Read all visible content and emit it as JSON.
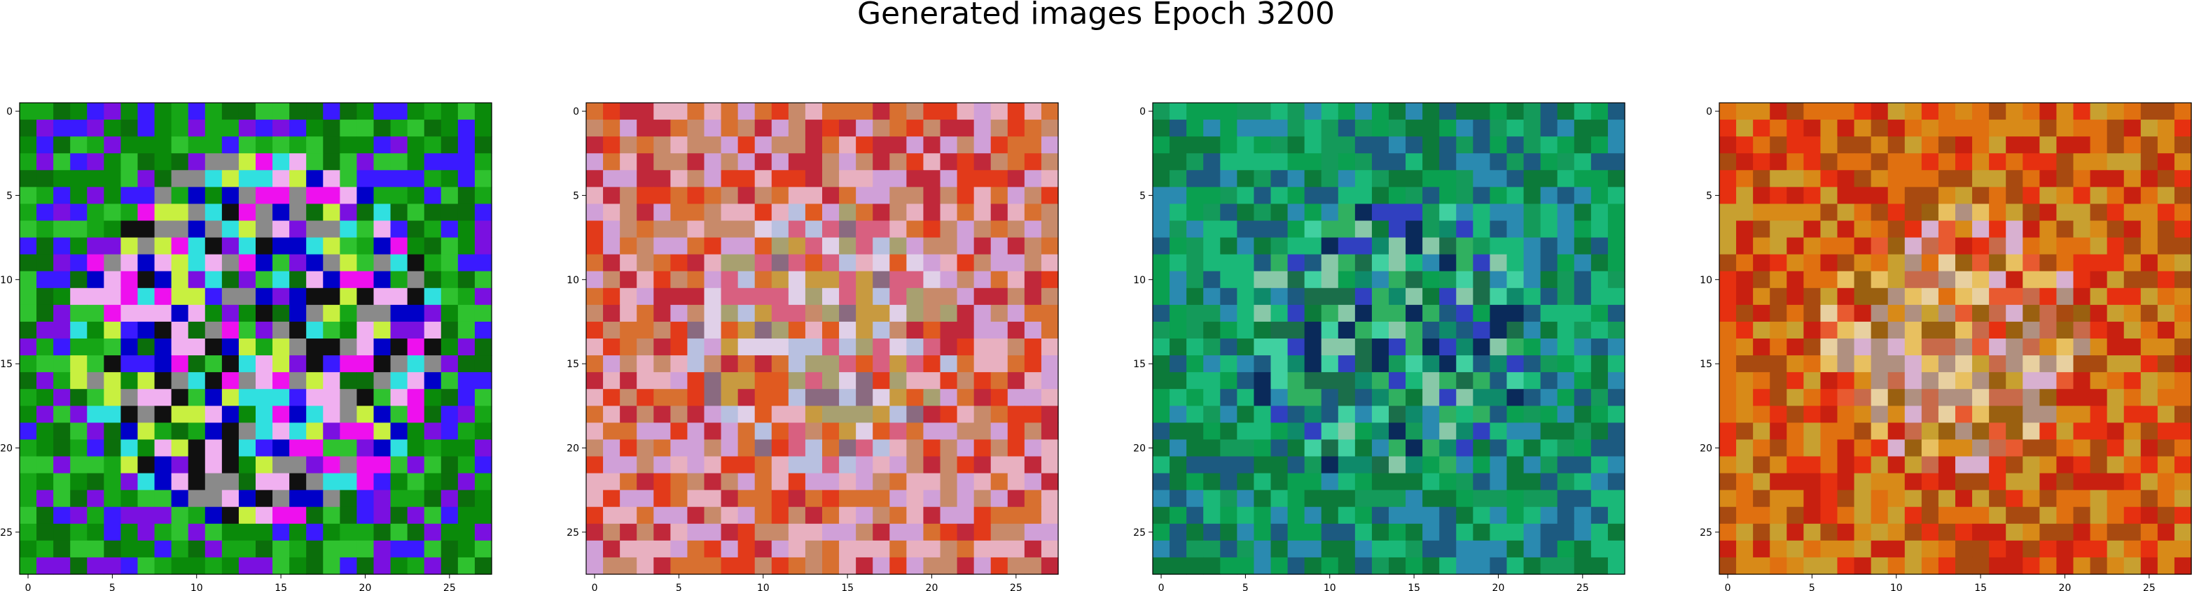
{
  "figure": {
    "title": "Generated images Epoch 3200"
  },
  "chart_data": [
    {
      "type": "heatmap",
      "description": "image grid 28x28 RGB",
      "grid_size": [
        28,
        28
      ],
      "x_ticks": [
        0,
        5,
        10,
        15,
        20,
        25
      ],
      "y_ticks": [
        0,
        5,
        10,
        15,
        20,
        25
      ],
      "xlim": [
        -0.5,
        27.5
      ],
      "ylim": [
        27.5,
        -0.5
      ],
      "palette": [
        "#0a8a0a",
        "#16a616",
        "#0b6e0b",
        "#2fc22f",
        "#3a1aff",
        "#7a10e0",
        "#ee10ee",
        "#0000c8",
        "#30e0e0",
        "#f0b0f0",
        "#c8f040",
        "#101010",
        "#8a8a8a"
      ],
      "seed": 11,
      "center_bias": 0.78
    },
    {
      "type": "heatmap",
      "grid_size": [
        28,
        28
      ],
      "x_ticks": [
        0,
        5,
        10,
        15,
        20,
        25
      ],
      "y_ticks": [
        0,
        5,
        10,
        15,
        20,
        25
      ],
      "xlim": [
        -0.5,
        27.5
      ],
      "ylim": [
        27.5,
        -0.5
      ],
      "palette": [
        "#c88a6a",
        "#d87030",
        "#e23a1a",
        "#c0283a",
        "#e8b0c0",
        "#d0a0d8",
        "#b8c0e0",
        "#e0d0e8",
        "#8a6a80",
        "#c89a40",
        "#d86080",
        "#a8a070",
        "#e05a20"
      ],
      "seed": 23,
      "center_bias": 0.55
    },
    {
      "type": "heatmap",
      "grid_size": [
        28,
        28
      ],
      "x_ticks": [
        0,
        5,
        10,
        15,
        20,
        25
      ],
      "y_ticks": [
        0,
        5,
        10,
        15,
        20,
        25
      ],
      "xlim": [
        -0.5,
        27.5
      ],
      "ylim": [
        27.5,
        -0.5
      ],
      "palette": [
        "#0aa050",
        "#149a5a",
        "#0c7a3a",
        "#1ab878",
        "#2a8ab0",
        "#1c5a80",
        "#0a2a5a",
        "#3040c0",
        "#40d0a0",
        "#88c8a8",
        "#0e8a6a",
        "#1a6e4a",
        "#30b060"
      ],
      "seed": 37,
      "center_bias": 0.6
    },
    {
      "type": "heatmap",
      "grid_size": [
        28,
        28
      ],
      "x_ticks": [
        0,
        5,
        10,
        15,
        20,
        25
      ],
      "y_ticks": [
        0,
        5,
        10,
        15,
        20,
        25
      ],
      "xlim": [
        -0.5,
        27.5
      ],
      "ylim": [
        27.5,
        -0.5
      ],
      "palette": [
        "#d88a18",
        "#e07010",
        "#e63010",
        "#c82010",
        "#a84a10",
        "#c8a030",
        "#e8c060",
        "#b09080",
        "#d8b0d0",
        "#e8d0a0",
        "#9a6010",
        "#e85a30",
        "#c86a4a"
      ],
      "seed": 53,
      "center_bias": 0.55
    }
  ]
}
